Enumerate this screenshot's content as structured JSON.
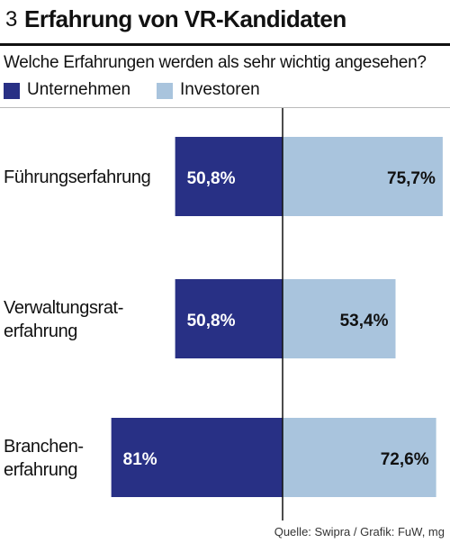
{
  "header": {
    "number": "3",
    "title": "Erfahrung von VR-Kandidaten"
  },
  "subtitle": "Welche Erfahrungen werden als sehr wichtig angesehen?",
  "legend": [
    {
      "label": "Unternehmen",
      "color": "#283085"
    },
    {
      "label": "Investoren",
      "color": "#a9c4dd"
    }
  ],
  "chart_data": {
    "type": "bar",
    "orientation": "diverging-horizontal",
    "unit": "%",
    "categories": [
      [
        "Führungserfahrung"
      ],
      [
        "Verwaltungsrat-",
        "erfahrung"
      ],
      [
        "Branchen-",
        "erfahrung"
      ]
    ],
    "series": [
      {
        "name": "Unternehmen",
        "color": "#283085",
        "values": [
          50.8,
          50.8,
          81
        ],
        "labels": [
          "50,8%",
          "50,8%",
          "81%"
        ]
      },
      {
        "name": "Investoren",
        "color": "#a9c4dd",
        "values": [
          75.7,
          53.4,
          72.6
        ],
        "labels": [
          "75,7%",
          "53,4%",
          "72,6%"
        ]
      }
    ]
  },
  "footer": "Quelle: Swipra / Grafik: FuW, mg"
}
